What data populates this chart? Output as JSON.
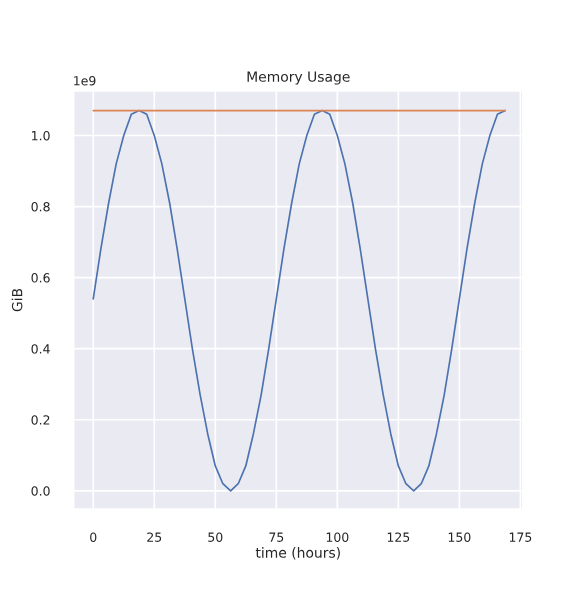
{
  "chart_data": {
    "type": "line",
    "title": "Memory Usage",
    "xlabel": "time (hours)",
    "ylabel": "GiB",
    "annotations": [
      "1e9"
    ],
    "xlim": [
      -8.4,
      176.4
    ],
    "ylim": [
      -0.054,
      1.128
    ],
    "xticks": [
      0,
      25,
      50,
      75,
      100,
      125,
      150,
      175
    ],
    "yticks": [
      {
        "value": 0,
        "label": "0.0"
      },
      {
        "value": 0.2,
        "label": "0.2"
      },
      {
        "value": 0.4,
        "label": "0.4"
      },
      {
        "value": 0.6,
        "label": "0.6"
      },
      {
        "value": 0.8,
        "label": "0.8"
      },
      {
        "value": 1,
        "label": "1.0"
      }
    ],
    "grid": true,
    "marker": "none",
    "line_style": "solid",
    "series": [
      {
        "color": "#4c72b0",
        "x": [
          0,
          3.1,
          6.3,
          9.4,
          12.5,
          15.6,
          18.8,
          21.9,
          25,
          28.1,
          31.3,
          34.4,
          37.5,
          40.6,
          43.8,
          46.9,
          50,
          53.1,
          56.3,
          59.4,
          62.5,
          65.6,
          68.8,
          71.9,
          75,
          78.1,
          81.3,
          84.4,
          87.5,
          90.6,
          93.8,
          96.9,
          100,
          103.1,
          106.3,
          109.4,
          112.5,
          115.6,
          118.8,
          121.9,
          125,
          128.1,
          131.3,
          134.4,
          137.5,
          140.6,
          143.8,
          146.9,
          150,
          153.1,
          156.3,
          159.4,
          162.5,
          165.6,
          168.8
        ],
        "values": [
          0.54,
          0.68,
          0.81,
          0.92,
          1.0,
          1.06,
          1.07,
          1.06,
          1.0,
          0.92,
          0.81,
          0.68,
          0.54,
          0.4,
          0.27,
          0.16,
          0.07,
          0.02,
          0.0,
          0.02,
          0.07,
          0.16,
          0.27,
          0.4,
          0.54,
          0.68,
          0.81,
          0.92,
          1.0,
          1.06,
          1.07,
          1.06,
          1.0,
          0.92,
          0.81,
          0.68,
          0.54,
          0.4,
          0.27,
          0.16,
          0.07,
          0.02,
          0.0,
          0.02,
          0.07,
          0.16,
          0.27,
          0.4,
          0.54,
          0.68,
          0.81,
          0.92,
          1.0,
          1.06,
          1.07
        ]
      },
      {
        "color": "#dd8452",
        "x": [
          0,
          168.8
        ],
        "values": [
          1.07,
          1.07
        ]
      }
    ]
  }
}
